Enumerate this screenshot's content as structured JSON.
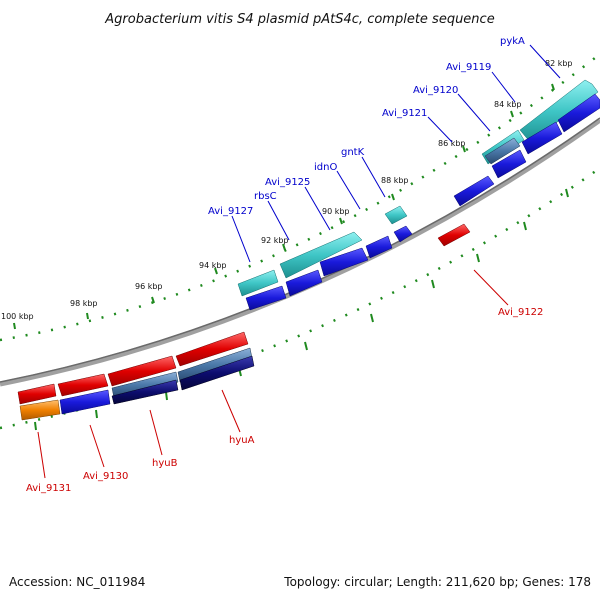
{
  "title": "Agrobacterium vitis S4 plasmid pAtS4c, complete sequence",
  "footer": {
    "accession": "Accession: NC_011984",
    "summary": "Topology: circular; Length: 211,620 bp; Genes: 178"
  },
  "ticks": [
    {
      "label": "82 kbp"
    },
    {
      "label": "84 kbp"
    },
    {
      "label": "86 kbp"
    },
    {
      "label": "88 kbp"
    },
    {
      "label": "90 kbp"
    },
    {
      "label": "92 kbp"
    },
    {
      "label": "94 kbp"
    },
    {
      "label": "96 kbp"
    },
    {
      "label": "98 kbp"
    },
    {
      "label": "100 kbp"
    }
  ],
  "genes_forward": [
    {
      "label": "pykA"
    },
    {
      "label": "Avi_9119"
    },
    {
      "label": "Avi_9120"
    },
    {
      "label": "Avi_9121"
    },
    {
      "label": "gntK"
    },
    {
      "label": "idnO"
    },
    {
      "label": "Avi_9125"
    },
    {
      "label": "rbsC"
    },
    {
      "label": "Avi_9127"
    }
  ],
  "genes_reverse": [
    {
      "label": "Avi_9122"
    },
    {
      "label": "hyuA"
    },
    {
      "label": "hyuB"
    },
    {
      "label": "Avi_9130"
    },
    {
      "label": "Avi_9131"
    }
  ],
  "colors": {
    "forward_label": "#0000cc",
    "reverse_label": "#cc0000",
    "backbone": "#808080",
    "tick": "#1f8a1f",
    "cyan_feature": "#3fc6c6",
    "blue_feature": "#1a1adb",
    "red_feature": "#e00000",
    "orange_feature": "#f08000",
    "steel_feature": "#4a78a8",
    "navy_feature": "#0c0c6e"
  }
}
